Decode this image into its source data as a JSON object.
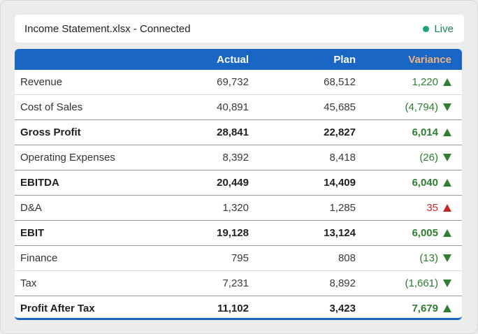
{
  "header": {
    "title": "Income Statement.xlsx - Connected",
    "status": "Live",
    "status_color": "#17a673"
  },
  "table": {
    "columns": [
      "",
      "Actual",
      "Plan",
      "Variance"
    ],
    "rows": [
      {
        "label": "Revenue",
        "actual": "69,732",
        "plan": "68,512",
        "variance": "1,220",
        "trend": "up",
        "tone": "good",
        "total": false
      },
      {
        "label": "Cost of Sales",
        "actual": "40,891",
        "plan": "45,685",
        "variance": "(4,794)",
        "trend": "down",
        "tone": "good",
        "total": false
      },
      {
        "label": "Gross Profit",
        "actual": "28,841",
        "plan": "22,827",
        "variance": "6,014",
        "trend": "up",
        "tone": "good",
        "total": true
      },
      {
        "label": "Operating Expenses",
        "actual": "8,392",
        "plan": "8,418",
        "variance": "(26)",
        "trend": "down",
        "tone": "good",
        "total": false
      },
      {
        "label": "EBITDA",
        "actual": "20,449",
        "plan": "14,409",
        "variance": "6,040",
        "trend": "up",
        "tone": "good",
        "total": true
      },
      {
        "label": "D&A",
        "actual": "1,320",
        "plan": "1,285",
        "variance": "35",
        "trend": "up",
        "tone": "bad",
        "total": false
      },
      {
        "label": "EBIT",
        "actual": "19,128",
        "plan": "13,124",
        "variance": "6,005",
        "trend": "up",
        "tone": "good",
        "total": true
      },
      {
        "label": "Finance",
        "actual": "795",
        "plan": "808",
        "variance": "(13)",
        "trend": "down",
        "tone": "good",
        "total": false
      },
      {
        "label": "Tax",
        "actual": "7,231",
        "plan": "8,892",
        "variance": "(1,661)",
        "trend": "down",
        "tone": "good",
        "total": false
      },
      {
        "label": "Profit After Tax",
        "actual": "11,102",
        "plan": "3,423",
        "variance": "7,679",
        "trend": "up",
        "tone": "good",
        "total": true
      }
    ]
  },
  "colors": {
    "header_bg": "#1a66c4",
    "variance_header": "#f0b47a",
    "good": "#2e7d32",
    "bad": "#c62828"
  }
}
